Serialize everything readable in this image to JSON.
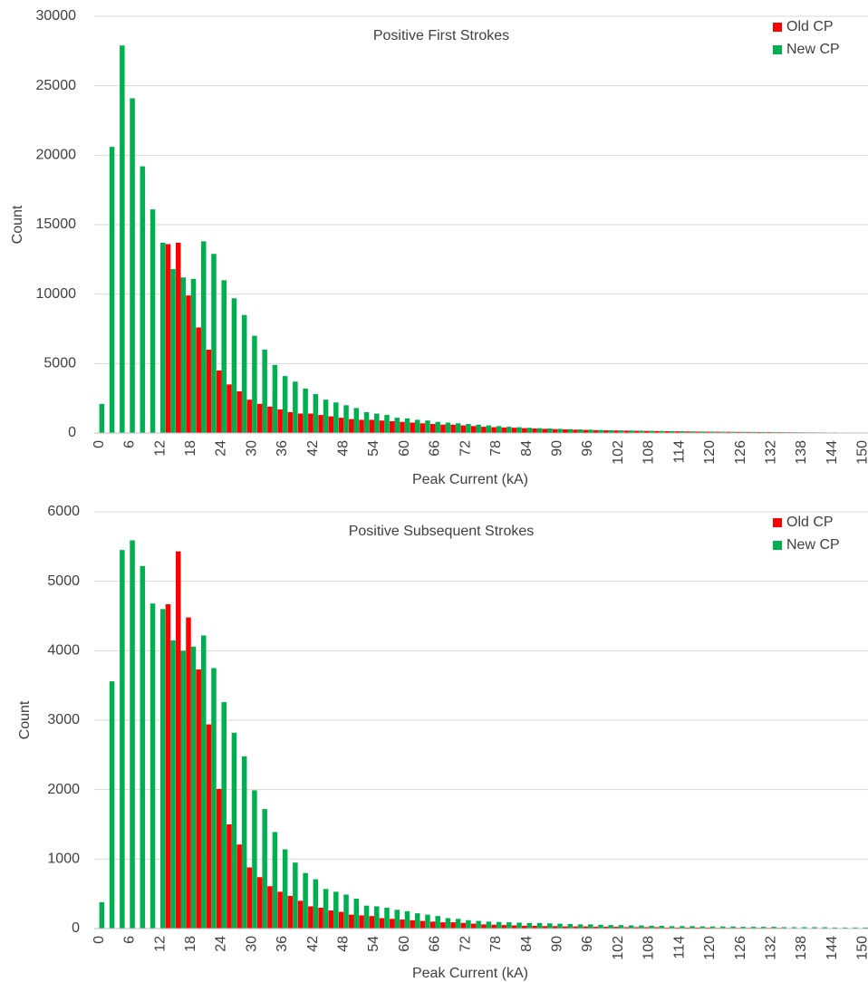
{
  "chart_data": [
    {
      "type": "bar",
      "title": "Positive First Strokes",
      "x_label": "Peak Current (kA)",
      "y_label": "Count",
      "categories": [
        "0",
        null,
        null,
        "6",
        null,
        null,
        "12",
        null,
        null,
        "18",
        null,
        null,
        "24",
        null,
        null,
        "30",
        null,
        null,
        "36",
        null,
        null,
        "42",
        null,
        null,
        "48",
        null,
        null,
        "54",
        null,
        null,
        "60",
        null,
        null,
        "66",
        null,
        null,
        "72",
        null,
        null,
        "78",
        null,
        null,
        "84",
        null,
        null,
        "90",
        null,
        null,
        "96",
        null,
        null,
        "102",
        null,
        null,
        "108",
        null,
        null,
        "114",
        null,
        null,
        "120",
        null,
        null,
        "126",
        null,
        null,
        "132",
        null,
        null,
        "138",
        null,
        null,
        "144",
        null,
        null,
        "150"
      ],
      "series": [
        {
          "name": "Old CP",
          "color": "#ff0000",
          "values": [
            0,
            0,
            0,
            0,
            0,
            0,
            0,
            13600,
            13700,
            9900,
            7600,
            6000,
            4500,
            3500,
            3000,
            2400,
            2100,
            1900,
            1700,
            1500,
            1400,
            1400,
            1300,
            1200,
            1100,
            1000,
            950,
            950,
            900,
            850,
            800,
            750,
            700,
            650,
            600,
            600,
            550,
            500,
            450,
            420,
            400,
            380,
            350,
            330,
            300,
            280,
            260,
            240,
            220,
            200,
            190,
            180,
            170,
            160,
            150,
            140,
            130,
            120,
            110,
            100,
            95,
            90,
            85,
            80,
            75,
            70,
            65,
            60,
            55,
            50,
            45,
            40,
            35,
            30,
            25,
            20
          ]
        },
        {
          "name": "New CP",
          "color": "#00b050",
          "values": [
            2100,
            20600,
            27900,
            24100,
            19200,
            16100,
            13700,
            11800,
            11200,
            11100,
            13800,
            12900,
            11000,
            9700,
            8500,
            7000,
            6000,
            4900,
            4100,
            3700,
            3200,
            2800,
            2400,
            2200,
            2000,
            1800,
            1500,
            1400,
            1300,
            1100,
            1050,
            950,
            900,
            800,
            750,
            700,
            650,
            600,
            550,
            500,
            450,
            420,
            380,
            350,
            330,
            300,
            280,
            260,
            240,
            220,
            200,
            190,
            180,
            170,
            160,
            150,
            140,
            130,
            120,
            110,
            100,
            95,
            90,
            85,
            80,
            75,
            70,
            65,
            60,
            55,
            50,
            45,
            40,
            35,
            30,
            25
          ]
        }
      ],
      "ylim": [
        0,
        30000
      ],
      "yticks": [
        0,
        5000,
        10000,
        15000,
        20000,
        25000,
        30000
      ],
      "grid": true,
      "legend": "upper right"
    },
    {
      "type": "bar",
      "title": "Positive Subsequent Strokes",
      "x_label": "Peak Current (kA)",
      "y_label": "Count",
      "categories": [
        "0",
        null,
        null,
        "6",
        null,
        null,
        "12",
        null,
        null,
        "18",
        null,
        null,
        "24",
        null,
        null,
        "30",
        null,
        null,
        "36",
        null,
        null,
        "42",
        null,
        null,
        "48",
        null,
        null,
        "54",
        null,
        null,
        "60",
        null,
        null,
        "66",
        null,
        null,
        "72",
        null,
        null,
        "78",
        null,
        null,
        "84",
        null,
        null,
        "90",
        null,
        null,
        "96",
        null,
        null,
        "102",
        null,
        null,
        "108",
        null,
        null,
        "114",
        null,
        null,
        "120",
        null,
        null,
        "126",
        null,
        null,
        "132",
        null,
        null,
        "138",
        null,
        null,
        "144",
        null,
        null,
        "150"
      ],
      "series": [
        {
          "name": "Old CP",
          "color": "#ff0000",
          "values": [
            0,
            0,
            0,
            0,
            0,
            0,
            0,
            4670,
            5430,
            4480,
            3730,
            2940,
            2010,
            1500,
            1210,
            880,
            740,
            610,
            530,
            470,
            400,
            320,
            300,
            260,
            240,
            200,
            190,
            180,
            150,
            140,
            130,
            120,
            110,
            100,
            90,
            90,
            80,
            70,
            60,
            55,
            50,
            45,
            40,
            40,
            35,
            35,
            30,
            30,
            30,
            25,
            25,
            25,
            20,
            20,
            20,
            20,
            15,
            15,
            15,
            15,
            15,
            10,
            10,
            10,
            10,
            10,
            10,
            10,
            5,
            5,
            5,
            5,
            5,
            5,
            5,
            5
          ]
        },
        {
          "name": "New CP",
          "color": "#00b050",
          "values": [
            380,
            3560,
            5450,
            5590,
            5220,
            4680,
            4600,
            4150,
            4000,
            4060,
            4220,
            3750,
            3260,
            2820,
            2480,
            1990,
            1720,
            1390,
            1140,
            950,
            800,
            710,
            570,
            530,
            490,
            430,
            330,
            320,
            300,
            270,
            250,
            220,
            200,
            180,
            150,
            140,
            120,
            110,
            100,
            95,
            90,
            85,
            80,
            80,
            75,
            70,
            65,
            60,
            60,
            55,
            50,
            50,
            45,
            45,
            40,
            40,
            35,
            35,
            35,
            30,
            30,
            30,
            30,
            25,
            25,
            25,
            25,
            20,
            20,
            20,
            20,
            20,
            15,
            15,
            15,
            15
          ]
        }
      ],
      "ylim": [
        0,
        6000
      ],
      "yticks": [
        0,
        1000,
        2000,
        3000,
        4000,
        5000,
        6000
      ],
      "grid": true,
      "legend": "upper right"
    }
  ]
}
